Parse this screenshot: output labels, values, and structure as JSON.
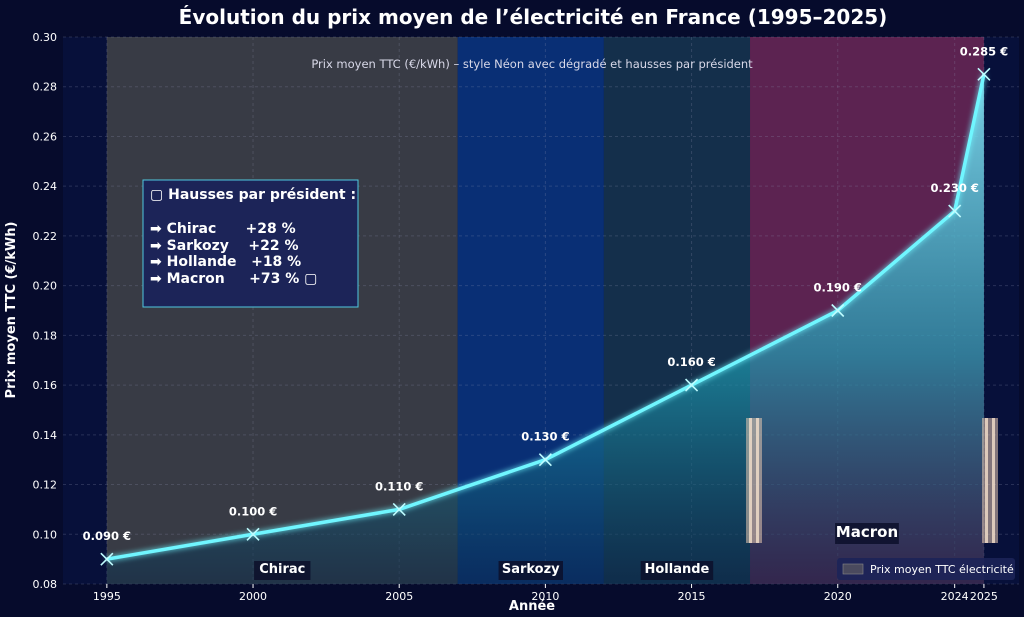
{
  "chart_data": {
    "type": "area",
    "title": "Évolution du prix moyen de l’électricité en France (1995–2025)",
    "subtitle": "Prix moyen TTC (€/kWh) – style Néon avec dégradé et hausses par président",
    "xlabel": "Année",
    "ylabel": "Prix moyen TTC (€/kWh)",
    "xlim": [
      1993.5,
      2026.2
    ],
    "ylim": [
      0.08,
      0.3
    ],
    "x_ticks": [
      1995,
      2000,
      2005,
      2010,
      2015,
      2020,
      2024,
      2025
    ],
    "y_ticks": [
      "0.08",
      "0.10",
      "0.12",
      "0.14",
      "0.16",
      "0.18",
      "0.20",
      "0.22",
      "0.24",
      "0.26",
      "0.28",
      "0.30"
    ],
    "grid": true,
    "legend_position": "bottom-right",
    "series": [
      {
        "name": "Prix moyen TTC électricité",
        "color": "#6ff6ff",
        "x": [
          1995,
          2000,
          2005,
          2010,
          2015,
          2020,
          2024,
          2025
        ],
        "y": [
          0.09,
          0.1,
          0.11,
          0.13,
          0.16,
          0.19,
          0.23,
          0.285
        ],
        "labels": [
          "0.090 €",
          "0.100 €",
          "0.110 €",
          "0.130 €",
          "0.160 €",
          "0.190 €",
          "0.230 €",
          "0.285 €"
        ]
      }
    ],
    "presidents": [
      {
        "name": "Chirac",
        "start": 1995,
        "end": 2007,
        "color": "#4a4a4a",
        "label_x": 2001
      },
      {
        "name": "Sarkozy",
        "start": 2007,
        "end": 2012,
        "color": "#0b3a8a",
        "label_x": 2009.5
      },
      {
        "name": "Hollande",
        "start": 2012,
        "end": 2017,
        "color": "#1a3a52",
        "label_x": 2014.5
      },
      {
        "name": "Macron",
        "start": 2017,
        "end": 2025,
        "color": "#7a2a5a",
        "label_x": 2021
      }
    ],
    "annotation_box": {
      "title": "▢ Hausses par président :",
      "lines": [
        "➡ Chirac      +28 %",
        "➡ Sarkozy    +22 %",
        "➡ Hollande   +18 %",
        "➡ Macron     +73 % ▢"
      ]
    }
  }
}
